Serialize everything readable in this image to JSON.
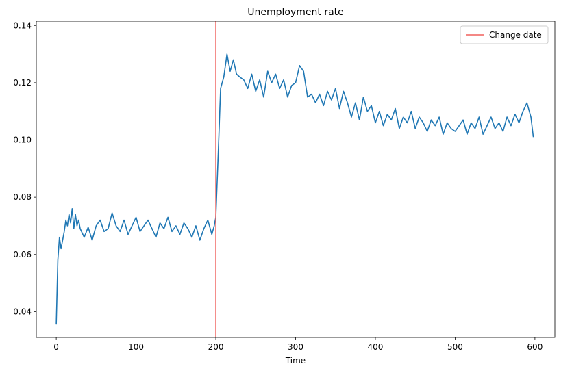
{
  "chart_data": {
    "type": "line",
    "title": "Unemployment rate",
    "xlabel": "Time",
    "ylabel": "",
    "xlim": [
      -25,
      625
    ],
    "ylim": [
      0.031,
      0.1415
    ],
    "xticks": [
      0,
      100,
      200,
      300,
      400,
      500,
      600
    ],
    "yticks": [
      0.04,
      0.06,
      0.08,
      0.1,
      0.12,
      0.14
    ],
    "grid": false,
    "legend_position": "top-right",
    "legend": [
      {
        "label": "Change date",
        "color": "#f0605d"
      }
    ],
    "vline": {
      "x": 200,
      "label": "Change date",
      "color": "#f0605d"
    },
    "series": [
      {
        "color": "#1f77b4",
        "x": [
          0,
          2,
          4,
          6,
          8,
          10,
          12,
          14,
          16,
          18,
          20,
          22,
          24,
          26,
          28,
          30,
          35,
          40,
          45,
          50,
          55,
          60,
          65,
          70,
          75,
          80,
          85,
          90,
          95,
          100,
          105,
          110,
          115,
          120,
          125,
          130,
          135,
          140,
          145,
          150,
          155,
          160,
          165,
          170,
          175,
          180,
          185,
          190,
          195,
          198,
          200,
          203,
          206,
          210,
          214,
          218,
          222,
          226,
          230,
          235,
          240,
          245,
          250,
          255,
          260,
          265,
          270,
          275,
          280,
          285,
          290,
          295,
          300,
          305,
          310,
          315,
          320,
          325,
          330,
          335,
          340,
          345,
          350,
          355,
          360,
          365,
          370,
          375,
          380,
          385,
          390,
          395,
          400,
          405,
          410,
          415,
          420,
          425,
          430,
          435,
          440,
          445,
          450,
          455,
          460,
          465,
          470,
          475,
          480,
          485,
          490,
          495,
          500,
          505,
          510,
          515,
          520,
          525,
          530,
          535,
          540,
          545,
          550,
          555,
          560,
          565,
          570,
          575,
          580,
          585,
          590,
          595,
          598
        ],
        "values": [
          0.0355,
          0.058,
          0.066,
          0.062,
          0.065,
          0.068,
          0.072,
          0.07,
          0.074,
          0.071,
          0.076,
          0.069,
          0.074,
          0.07,
          0.072,
          0.069,
          0.066,
          0.0695,
          0.065,
          0.07,
          0.072,
          0.068,
          0.069,
          0.0745,
          0.07,
          0.068,
          0.072,
          0.067,
          0.07,
          0.073,
          0.068,
          0.07,
          0.072,
          0.069,
          0.066,
          0.071,
          0.069,
          0.073,
          0.068,
          0.07,
          0.067,
          0.071,
          0.069,
          0.066,
          0.07,
          0.065,
          0.069,
          0.072,
          0.067,
          0.07,
          0.073,
          0.095,
          0.118,
          0.122,
          0.13,
          0.124,
          0.128,
          0.123,
          0.122,
          0.121,
          0.118,
          0.123,
          0.117,
          0.121,
          0.115,
          0.124,
          0.12,
          0.123,
          0.118,
          0.121,
          0.115,
          0.119,
          0.12,
          0.126,
          0.124,
          0.115,
          0.116,
          0.113,
          0.116,
          0.112,
          0.117,
          0.114,
          0.118,
          0.111,
          0.117,
          0.113,
          0.108,
          0.113,
          0.107,
          0.115,
          0.11,
          0.112,
          0.106,
          0.11,
          0.105,
          0.109,
          0.107,
          0.111,
          0.104,
          0.108,
          0.106,
          0.11,
          0.104,
          0.108,
          0.106,
          0.103,
          0.107,
          0.105,
          0.108,
          0.102,
          0.106,
          0.104,
          0.103,
          0.105,
          0.107,
          0.102,
          0.106,
          0.104,
          0.108,
          0.102,
          0.105,
          0.108,
          0.104,
          0.106,
          0.103,
          0.108,
          0.105,
          0.109,
          0.106,
          0.11,
          0.113,
          0.108,
          0.101
        ]
      }
    ]
  }
}
